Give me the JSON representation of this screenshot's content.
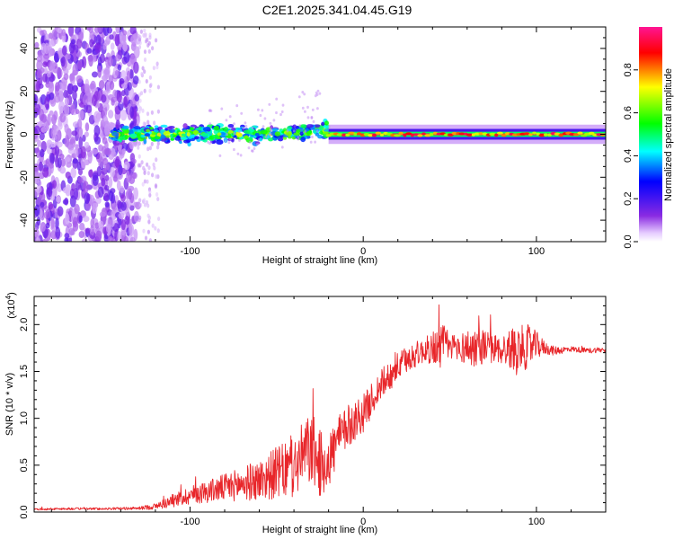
{
  "title": "C2E1.2025.341.04.45.G19",
  "colors": {
    "snr_line": "#e8262a",
    "axis": "#000000",
    "background": "#ffffff"
  },
  "chart_data": [
    {
      "type": "heatmap",
      "xlabel": "Height of straight line (km)",
      "ylabel": "Frequency (Hz)",
      "xlim": [
        -190,
        140
      ],
      "ylim": [
        -50,
        50
      ],
      "xticks": [
        -100,
        0,
        100
      ],
      "xtick_labels": [
        "-100",
        "0",
        "100"
      ],
      "yticks": [
        -40,
        -20,
        0,
        20,
        40
      ],
      "ytick_labels": [
        "-40",
        "-20",
        "0",
        "20",
        "40"
      ],
      "colorbar": {
        "label": "Normalized spectral amplitude",
        "range": [
          0,
          1
        ],
        "ticks": [
          0.0,
          0.2,
          0.4,
          0.6,
          0.8
        ],
        "tick_labels": [
          "0.0",
          "0.2",
          "0.4",
          "0.6",
          "0.8"
        ],
        "colormap": "rainbow (white-violet-blue-cyan-green-yellow-red-pink)"
      },
      "regions": [
        {
          "description": "scattered noise",
          "x_range": [
            -190,
            -130
          ],
          "freq_range": [
            -50,
            50
          ],
          "amplitude": 0.15
        },
        {
          "description": "sparse noise",
          "x_range": [
            -130,
            -118
          ],
          "freq_range": [
            -50,
            50
          ],
          "amplitude": 0.05
        },
        {
          "description": "broad signal band",
          "x_range": [
            -145,
            -20
          ],
          "freq_range": [
            -8,
            8
          ],
          "amplitude": 0.55
        },
        {
          "description": "narrow stable carrier",
          "x_range": [
            -20,
            140
          ],
          "freq_center": 0,
          "amplitude": 0.95
        }
      ]
    },
    {
      "type": "line",
      "xlabel": "Height of straight line (km)",
      "ylabel": "SNR (10 * v/v)",
      "y_scale_label": "(x10",
      "y_scale_exponent": "4",
      "xlim": [
        -190,
        140
      ],
      "ylim": [
        0,
        23000
      ],
      "xticks": [
        -100,
        0,
        100
      ],
      "xtick_labels": [
        "-100",
        "0",
        "100"
      ],
      "yticks": [
        0,
        5000,
        10000,
        15000,
        20000
      ],
      "ytick_labels": [
        "0.0",
        "0.5",
        "1.0",
        "1.5",
        "2.0"
      ],
      "series": [
        {
          "name": "SNR",
          "x": [
            -190,
            -170,
            -150,
            -130,
            -120,
            -110,
            -100,
            -90,
            -80,
            -70,
            -60,
            -50,
            -40,
            -35,
            -30,
            -25,
            -20,
            -15,
            -10,
            -5,
            0,
            5,
            10,
            15,
            20,
            25,
            30,
            35,
            40,
            45,
            50,
            55,
            60,
            65,
            70,
            75,
            80,
            85,
            90,
            95,
            100,
            105,
            110,
            115,
            120,
            125,
            130,
            135,
            140
          ],
          "values": [
            300,
            350,
            350,
            400,
            600,
            1200,
            1800,
            2200,
            2600,
            3000,
            3400,
            4200,
            4600,
            6000,
            6800,
            5000,
            5500,
            7500,
            8800,
            9800,
            10500,
            12000,
            13500,
            14500,
            15500,
            16200,
            16800,
            17200,
            17500,
            17800,
            17700,
            17600,
            17500,
            17600,
            17700,
            17400,
            17300,
            17400,
            17500,
            17600,
            17800,
            17500,
            17200,
            17300,
            17400,
            17300,
            17200,
            17300,
            17300
          ],
          "noise_amplitude": [
            100,
            120,
            120,
            150,
            350,
            700,
            1000,
            1200,
            1500,
            1800,
            2200,
            2800,
            3200,
            3600,
            4000,
            3500,
            3200,
            2600,
            2400,
            2200,
            2000,
            1800,
            1700,
            1600,
            1500,
            1500,
            1400,
            1300,
            1800,
            2500,
            1500,
            1400,
            2000,
            2200,
            1800,
            1600,
            1600,
            2200,
            2400,
            2400,
            1500,
            700,
            500,
            400,
            300,
            300,
            300,
            300,
            300
          ]
        }
      ]
    }
  ]
}
